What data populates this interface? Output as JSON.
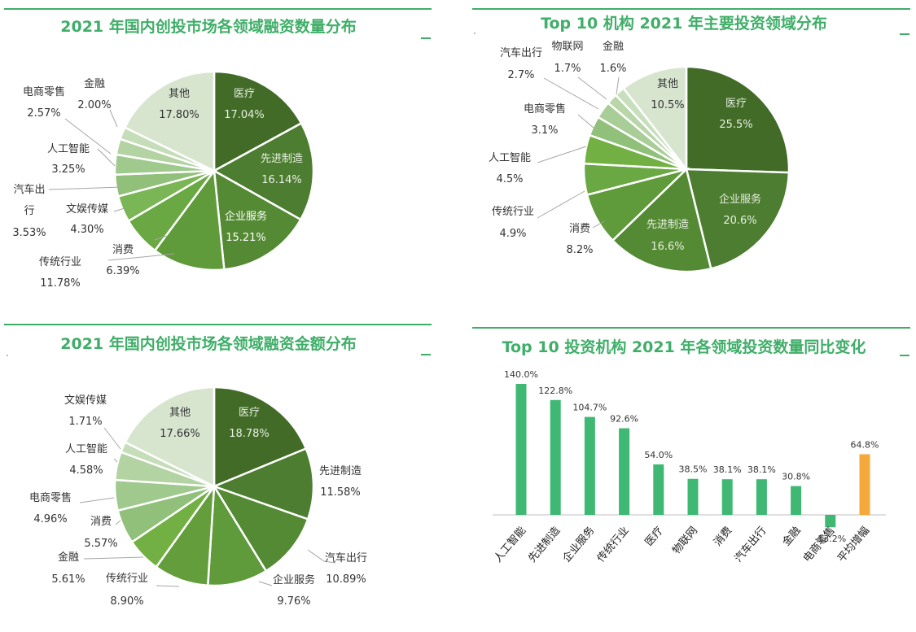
{
  "chart_data": [
    {
      "id": "count",
      "type": "pie",
      "title": "2021 年国内创投市场各领域融资数量分布",
      "slices": [
        {
          "label": "医疗",
          "value": "17.04%",
          "v": 17.04,
          "color": "#426b28"
        },
        {
          "label": "先进制造",
          "value": "16.14%",
          "v": 16.14,
          "color": "#4d7d30"
        },
        {
          "label": "企业服务",
          "value": "15.21%",
          "v": 15.21,
          "color": "#558a34"
        },
        {
          "label": "传统行业",
          "value": "11.78%",
          "v": 11.78,
          "color": "#5f9a3b"
        },
        {
          "label": "消费",
          "value": "6.39%",
          "v": 6.39,
          "color": "#6aa843"
        },
        {
          "label": "文娱传媒",
          "value": "4.30%",
          "v": 4.3,
          "color": "#7ab556"
        },
        {
          "label": "汽车出行",
          "value": "3.53%",
          "v": 3.53,
          "color": "#91c07b"
        },
        {
          "label": "人工智能",
          "value": "3.25%",
          "v": 3.25,
          "color": "#a0c98e"
        },
        {
          "label": "电商零售",
          "value": "2.57%",
          "v": 2.57,
          "color": "#b3d3a2"
        },
        {
          "label": "金融",
          "value": "2.00%",
          "v": 2.0,
          "color": "#c5ddb9"
        },
        {
          "label": "其他",
          "value": "17.80%",
          "v": 17.8,
          "color": "#d7e5cf"
        }
      ]
    },
    {
      "id": "top10",
      "type": "pie",
      "title": "Top 10 机构 2021 年主要投资领域分布",
      "slices": [
        {
          "label": "医疗",
          "value": "25.5%",
          "v": 25.5,
          "color": "#426b28"
        },
        {
          "label": "企业服务",
          "value": "20.6%",
          "v": 20.6,
          "color": "#4d7d30"
        },
        {
          "label": "先进制造",
          "value": "16.6%",
          "v": 16.6,
          "color": "#558a34"
        },
        {
          "label": "消费",
          "value": "8.2%",
          "v": 8.2,
          "color": "#5f9a3b"
        },
        {
          "label": "传统行业",
          "value": "4.9%",
          "v": 4.9,
          "color": "#6aa843"
        },
        {
          "label": "人工智能",
          "value": "4.5%",
          "v": 4.5,
          "color": "#72b044"
        },
        {
          "label": "电商零售",
          "value": "3.1%",
          "v": 3.1,
          "color": "#91c07b"
        },
        {
          "label": "汽车出行",
          "value": "2.7%",
          "v": 2.7,
          "color": "#a9cd97"
        },
        {
          "label": "物联网",
          "value": "1.7%",
          "v": 1.7,
          "color": "#b8d6a8"
        },
        {
          "label": "金融",
          "value": "1.6%",
          "v": 1.6,
          "color": "#c8dfbd"
        },
        {
          "label": "其他",
          "value": "10.5%",
          "v": 10.5,
          "color": "#d7e5cf"
        }
      ]
    },
    {
      "id": "amount",
      "type": "pie",
      "title": "2021 年国内创投市场各领域融资金额分布",
      "slices": [
        {
          "label": "医疗",
          "value": "18.78%",
          "v": 18.78,
          "color": "#426b28"
        },
        {
          "label": "先进制造",
          "value": "11.58%",
          "v": 11.58,
          "color": "#4d7d30"
        },
        {
          "label": "汽车出行",
          "value": "10.89%",
          "v": 10.89,
          "color": "#558a34"
        },
        {
          "label": "企业服务",
          "value": "9.76%",
          "v": 9.76,
          "color": "#5f9a3b"
        },
        {
          "label": "传统行业",
          "value": "8.90%",
          "v": 8.9,
          "color": "#649e3c"
        },
        {
          "label": "金融",
          "value": "5.61%",
          "v": 5.61,
          "color": "#72b044"
        },
        {
          "label": "消费",
          "value": "5.57%",
          "v": 5.57,
          "color": "#91c07b"
        },
        {
          "label": "电商零售",
          "value": "4.96%",
          "v": 4.96,
          "color": "#a0c98e"
        },
        {
          "label": "人工智能",
          "value": "4.58%",
          "v": 4.58,
          "color": "#b3d3a2"
        },
        {
          "label": "文娱传媒",
          "value": "1.71%",
          "v": 1.71,
          "color": "#c5ddb9"
        },
        {
          "label": "其他",
          "value": "17.66%",
          "v": 17.66,
          "color": "#d7e5cf"
        }
      ]
    },
    {
      "id": "yoy",
      "type": "bar",
      "title": "Top 10 投资机构 2021 年各领域投资数量同比变化",
      "categories": [
        "人工智能",
        "先进制造",
        "企业服务",
        "传统行业",
        "医疗",
        "物联网",
        "消费",
        "汽车出行",
        "金融",
        "电商零售",
        "平均增幅"
      ],
      "values": [
        140.0,
        122.8,
        104.7,
        92.6,
        54.0,
        38.5,
        38.1,
        38.1,
        30.8,
        -13.2,
        64.8
      ],
      "value_labels": [
        "140.0%",
        "122.8%",
        "104.7%",
        "92.6%",
        "54.0%",
        "38.5%",
        "38.1%",
        "38.1%",
        "30.8%",
        "-13.2%",
        "64.8%"
      ],
      "colors": {
        "bar": "#3fb874",
        "highlight": "#f5a93a",
        "axis": "#bfbfbf"
      }
    }
  ]
}
